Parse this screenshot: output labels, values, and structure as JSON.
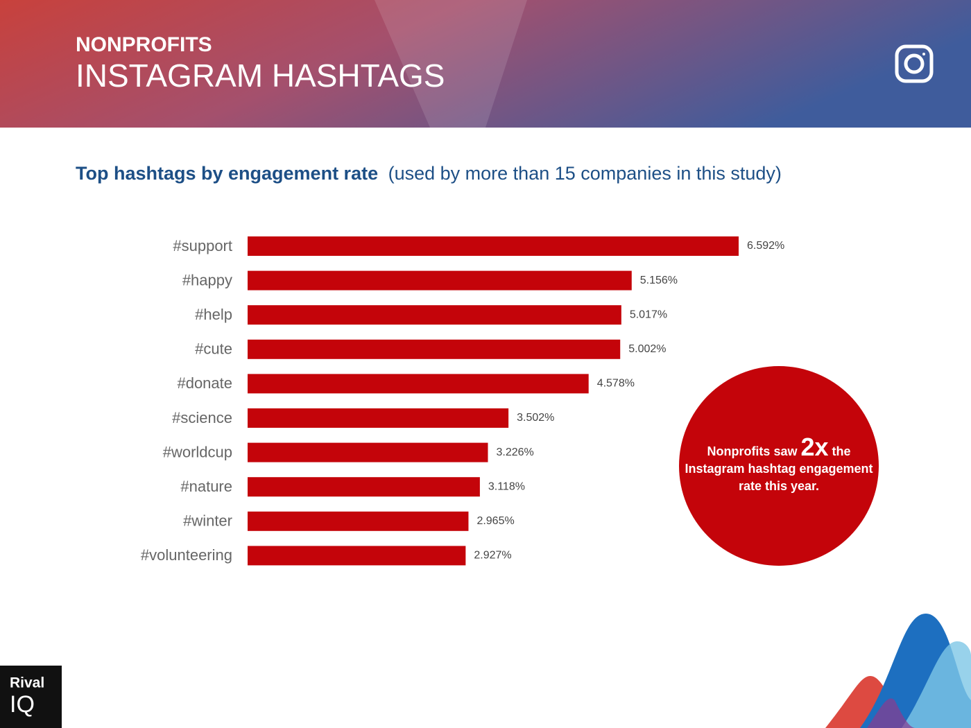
{
  "header": {
    "category": "NONPROFITS",
    "title": "INSTAGRAM HASHTAGS"
  },
  "chart_data": {
    "type": "bar",
    "orientation": "horizontal",
    "title": "Top hashtags by engagement rate",
    "subtitle": "(used by more than 15 companies in this study)",
    "categories": [
      "#support",
      "#happy",
      "#help",
      "#cute",
      "#donate",
      "#science",
      "#worldcup",
      "#nature",
      "#winter",
      "#volunteering"
    ],
    "values": [
      6.592,
      5.156,
      5.017,
      5.002,
      4.578,
      3.502,
      3.226,
      3.118,
      2.965,
      2.927
    ],
    "value_labels": [
      "6.592%",
      "5.156%",
      "5.017%",
      "5.002%",
      "4.578%",
      "3.502%",
      "3.226%",
      "3.118%",
      "2.965%",
      "2.927%"
    ],
    "color": "#c4040a"
  },
  "callout": {
    "text_before": "Nonprofits saw",
    "highlight": "2x",
    "text_after": "the Instagram hashtag engagement rate this year."
  },
  "logo": {
    "line1": "Rival",
    "line2": "IQ"
  }
}
